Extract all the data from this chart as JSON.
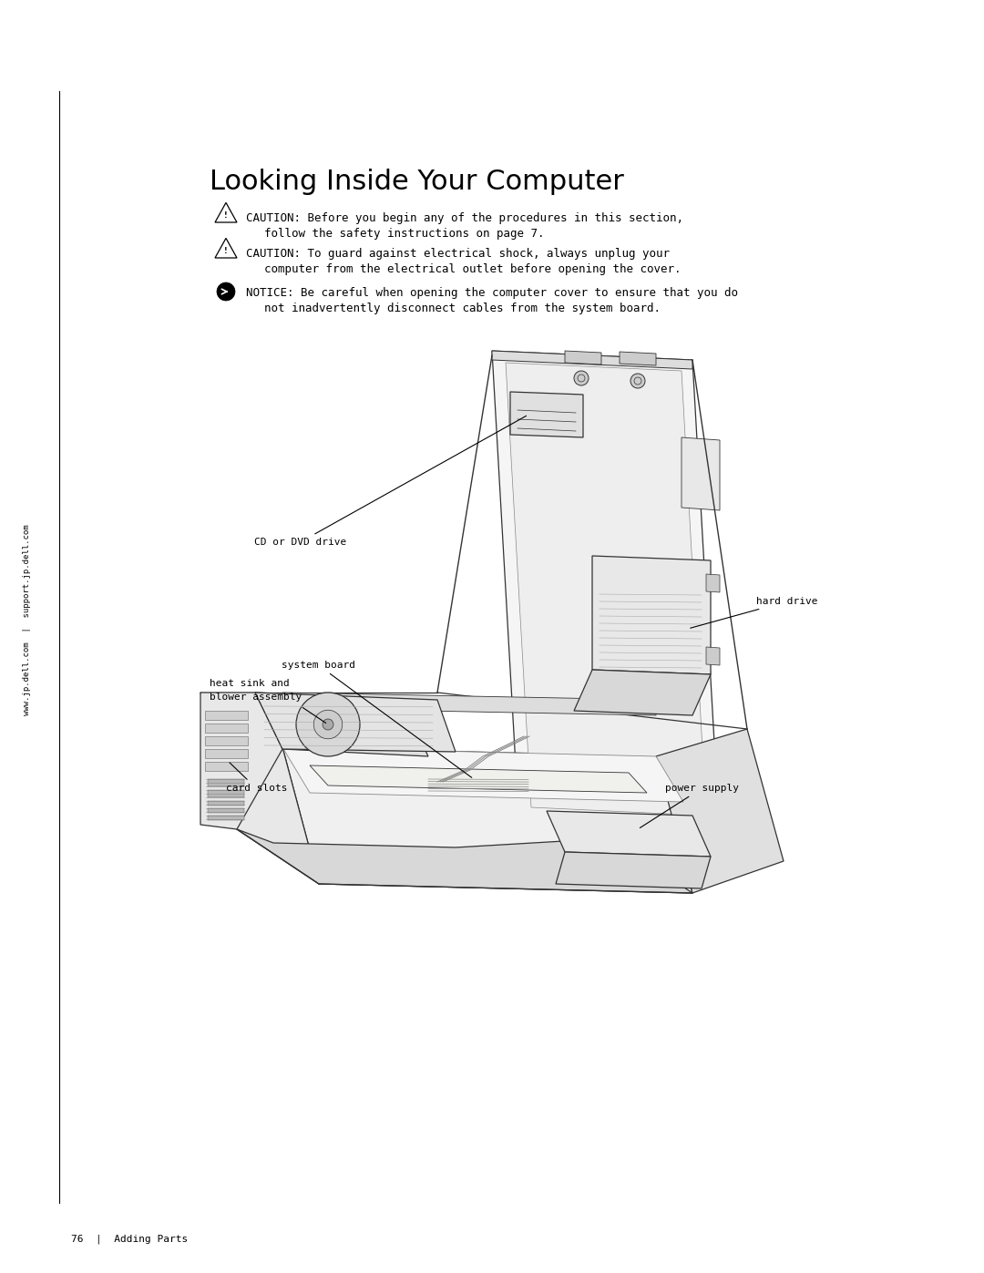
{
  "bg_color": "#ffffff",
  "page_width": 10.8,
  "page_height": 13.97,
  "title": "Looking Inside Your Computer",
  "title_fontsize": 22,
  "caution1_line1": "CAUTION: Before you begin any of the procedures in this section,",
  "caution1_line2": "follow the safety instructions on page 7.",
  "caution2_line1": "CAUTION: To guard against electrical shock, always unplug your",
  "caution2_line2": "computer from the electrical outlet before opening the cover.",
  "notice_line1": "NOTICE: Be careful when opening the computer cover to ensure that you do",
  "notice_line2": "not inadvertently disconnect cables from the system board.",
  "sidebar_text": "www.jp.dell.com  |  support.jp.dell.com",
  "footer_text": "76  |  Adding Parts",
  "label_cd_dvd": "CD or DVD drive",
  "label_hard_drive": "hard drive",
  "label_system_board": "system board",
  "label_heat_sink1": "heat sink and",
  "label_heat_sink2": "blower assembly",
  "label_card_slots": "card slots",
  "label_power_supply": "power supply",
  "text_color": "#000000",
  "body_fontsize": 9.0,
  "label_fontsize": 8.0
}
